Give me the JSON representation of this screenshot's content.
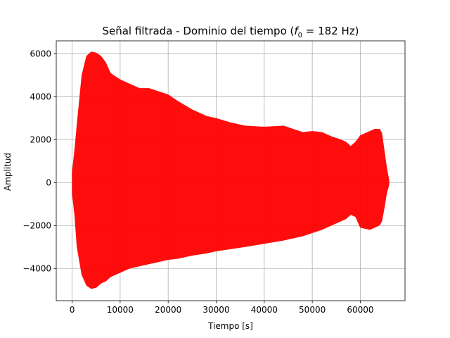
{
  "chart_data": {
    "type": "line",
    "title_parts": {
      "prefix": "Señal filtrada - Dominio del tiempo (",
      "var": "f",
      "sub": "0",
      "suffix": " = 182 Hz)"
    },
    "xlabel": "Tiempo [s]",
    "ylabel": "Amplitud",
    "xlim": [
      -3300,
      69300
    ],
    "ylim": [
      -5500,
      6600
    ],
    "xticks": [
      0,
      10000,
      20000,
      30000,
      40000,
      50000,
      60000
    ],
    "xtick_labels": [
      "0",
      "10000",
      "20000",
      "30000",
      "40000",
      "50000",
      "60000"
    ],
    "yticks": [
      -4000,
      -2000,
      0,
      2000,
      4000,
      6000
    ],
    "ytick_labels": [
      "−4000",
      "−2000",
      "0",
      "2000",
      "4000",
      "6000"
    ],
    "grid": true,
    "series": [
      {
        "color": "#ff0000",
        "description": "oscillating signal envelope",
        "x": [
          0,
          500,
          1000,
          2000,
          3000,
          4000,
          5000,
          6000,
          7000,
          8000,
          10000,
          12000,
          14000,
          16000,
          18000,
          20000,
          22000,
          25000,
          28000,
          30000,
          33000,
          36000,
          40000,
          44000,
          46000,
          48000,
          50000,
          52000,
          54000,
          56000,
          57000,
          58000,
          59000,
          60000,
          62000,
          63000,
          64000,
          64500,
          65000,
          65500,
          66000
        ],
        "upper": [
          500,
          1500,
          2700,
          5000,
          5900,
          6100,
          6050,
          5900,
          5600,
          5100,
          4800,
          4600,
          4400,
          4400,
          4250,
          4100,
          3800,
          3400,
          3100,
          3000,
          2800,
          2650,
          2600,
          2650,
          2500,
          2350,
          2400,
          2350,
          2150,
          2000,
          1900,
          1700,
          1900,
          2200,
          2400,
          2500,
          2500,
          2300,
          1500,
          700,
          100
        ],
        "lower": [
          -500,
          -1500,
          -3000,
          -4300,
          -4800,
          -4950,
          -4900,
          -4700,
          -4600,
          -4400,
          -4200,
          -4000,
          -3900,
          -3800,
          -3700,
          -3600,
          -3550,
          -3400,
          -3300,
          -3200,
          -3100,
          -3000,
          -2850,
          -2700,
          -2600,
          -2500,
          -2350,
          -2200,
          -2000,
          -1800,
          -1700,
          -1500,
          -1600,
          -2100,
          -2200,
          -2100,
          -2000,
          -1800,
          -1200,
          -500,
          -100
        ],
        "cycles": 1850
      }
    ]
  }
}
